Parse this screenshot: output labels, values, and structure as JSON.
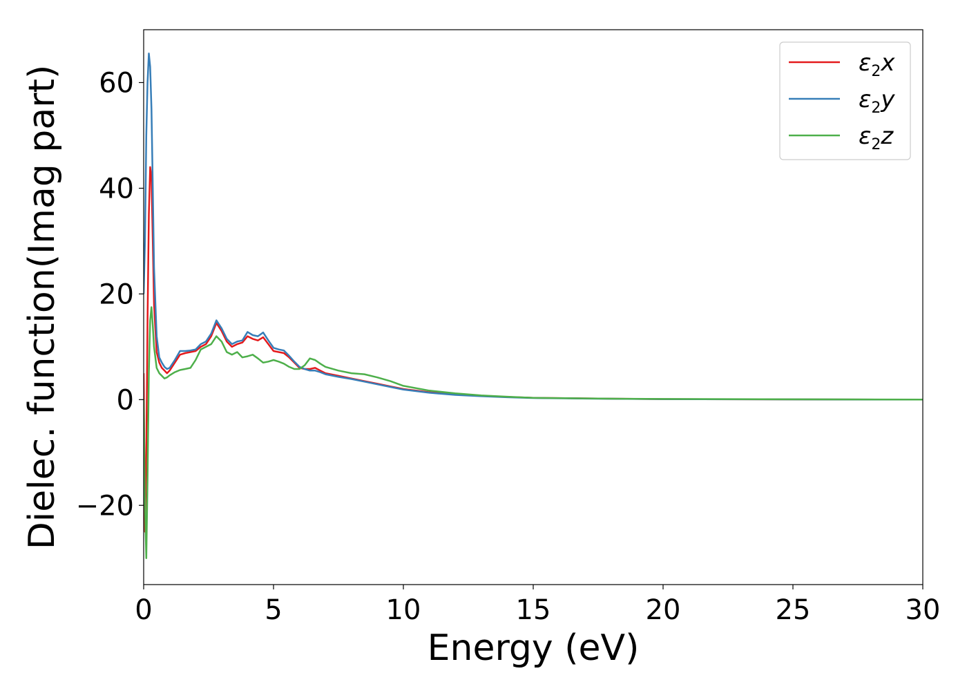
{
  "chart_data": {
    "type": "line",
    "xlabel": "Energy (eV)",
    "ylabel": "Dielec. function(Imag part)",
    "xlim": [
      0,
      30
    ],
    "ylim": [
      -35,
      70
    ],
    "xticks": [
      0,
      5,
      10,
      15,
      20,
      25,
      30
    ],
    "xtick_labels": [
      "0",
      "5",
      "10",
      "15",
      "20",
      "25",
      "30"
    ],
    "yticks": [
      -20,
      0,
      20,
      40,
      60
    ],
    "ytick_labels": [
      "−20",
      "0",
      "20",
      "40",
      "60"
    ],
    "grid": false,
    "legend_position": "top-right",
    "series": [
      {
        "name": "ε₂x",
        "name_base": "ε",
        "name_sub": "2",
        "name_suffix": "x",
        "color": "#e41a1c",
        "x": [
          0,
          0.05,
          0.1,
          0.15,
          0.2,
          0.25,
          0.3,
          0.35,
          0.4,
          0.5,
          0.6,
          0.7,
          0.8,
          0.9,
          1.0,
          1.2,
          1.4,
          1.6,
          1.8,
          2.0,
          2.2,
          2.4,
          2.6,
          2.8,
          3.0,
          3.2,
          3.4,
          3.6,
          3.8,
          4.0,
          4.2,
          4.4,
          4.6,
          4.8,
          5.0,
          5.2,
          5.4,
          5.6,
          5.8,
          6.0,
          6.2,
          6.4,
          6.6,
          6.8,
          7.0,
          7.5,
          8.0,
          8.5,
          9.0,
          9.5,
          10.0,
          11.0,
          12.0,
          13.0,
          14.0,
          15.0,
          17.5,
          20.0,
          25.0,
          30.0
        ],
        "y": [
          5,
          -25,
          -10,
          15,
          35,
          44,
          42,
          30,
          18,
          9,
          7,
          6,
          5.5,
          5,
          5.5,
          7,
          8.5,
          8.8,
          9,
          9.2,
          10,
          10.5,
          12,
          14.5,
          13,
          11,
          10,
          10.5,
          10.8,
          12,
          11.5,
          11.2,
          11.8,
          10.5,
          9.2,
          9,
          8.8,
          8,
          7,
          6,
          5.8,
          5.8,
          6,
          5.5,
          5,
          4.5,
          4,
          3.5,
          3,
          2.5,
          2,
          1.4,
          1.0,
          0.7,
          0.5,
          0.35,
          0.2,
          0.1,
          0.05,
          0.0
        ]
      },
      {
        "name": "ε₂y",
        "name_base": "ε",
        "name_sub": "2",
        "name_suffix": "y",
        "color": "#377eb8",
        "x": [
          0,
          0.05,
          0.1,
          0.15,
          0.2,
          0.25,
          0.3,
          0.35,
          0.4,
          0.5,
          0.6,
          0.7,
          0.8,
          0.9,
          1.0,
          1.2,
          1.4,
          1.6,
          1.8,
          2.0,
          2.2,
          2.4,
          2.6,
          2.8,
          3.0,
          3.2,
          3.4,
          3.6,
          3.8,
          4.0,
          4.2,
          4.4,
          4.6,
          4.8,
          5.0,
          5.2,
          5.4,
          5.6,
          5.8,
          6.0,
          6.2,
          6.4,
          6.6,
          6.8,
          7.0,
          7.5,
          8.0,
          8.5,
          9.0,
          9.5,
          10.0,
          11.0,
          12.0,
          13.0,
          14.0,
          15.0,
          17.5,
          20.0,
          25.0,
          30.0
        ],
        "y": [
          20,
          30,
          50,
          60,
          65.5,
          63,
          55,
          40,
          25,
          12,
          8,
          7,
          6.2,
          5.8,
          6,
          7.5,
          9.2,
          9.2,
          9.3,
          9.5,
          10.5,
          11,
          12.5,
          15,
          13.5,
          11.5,
          10.5,
          11,
          11.2,
          12.8,
          12.2,
          12,
          12.7,
          11.2,
          9.8,
          9.5,
          9.3,
          8.3,
          7.2,
          6.2,
          5.8,
          5.5,
          5.5,
          5.2,
          4.8,
          4.3,
          3.9,
          3.4,
          2.9,
          2.4,
          1.9,
          1.3,
          0.9,
          0.65,
          0.45,
          0.3,
          0.18,
          0.1,
          0.05,
          0.0
        ]
      },
      {
        "name": "ε₂z",
        "name_base": "ε",
        "name_sub": "2",
        "name_suffix": "z",
        "color": "#4daf4a",
        "x": [
          0,
          0.05,
          0.1,
          0.15,
          0.2,
          0.25,
          0.3,
          0.35,
          0.4,
          0.5,
          0.6,
          0.7,
          0.8,
          0.9,
          1.0,
          1.2,
          1.4,
          1.6,
          1.8,
          2.0,
          2.2,
          2.4,
          2.6,
          2.8,
          3.0,
          3.2,
          3.4,
          3.6,
          3.8,
          4.0,
          4.2,
          4.4,
          4.6,
          4.8,
          5.0,
          5.2,
          5.4,
          5.6,
          5.8,
          6.0,
          6.2,
          6.4,
          6.6,
          6.8,
          7.0,
          7.5,
          8.0,
          8.5,
          9.0,
          9.5,
          10.0,
          11.0,
          12.0,
          13.0,
          14.0,
          15.0,
          17.5,
          20.0,
          25.0,
          30.0
        ],
        "y": [
          0,
          -20,
          -30,
          -15,
          5,
          15,
          17.5,
          14,
          10,
          6,
          5,
          4.5,
          4,
          4.2,
          4.6,
          5.2,
          5.6,
          5.8,
          6,
          7.5,
          9.5,
          10,
          10.5,
          12,
          11,
          9,
          8.5,
          9,
          8,
          8.2,
          8.5,
          7.8,
          7,
          7.2,
          7.5,
          7.2,
          6.8,
          6.2,
          5.8,
          5.8,
          6.5,
          7.8,
          7.5,
          6.8,
          6.2,
          5.5,
          5,
          4.8,
          4.2,
          3.5,
          2.6,
          1.7,
          1.2,
          0.8,
          0.55,
          0.35,
          0.2,
          0.12,
          0.06,
          0.02
        ]
      }
    ]
  }
}
